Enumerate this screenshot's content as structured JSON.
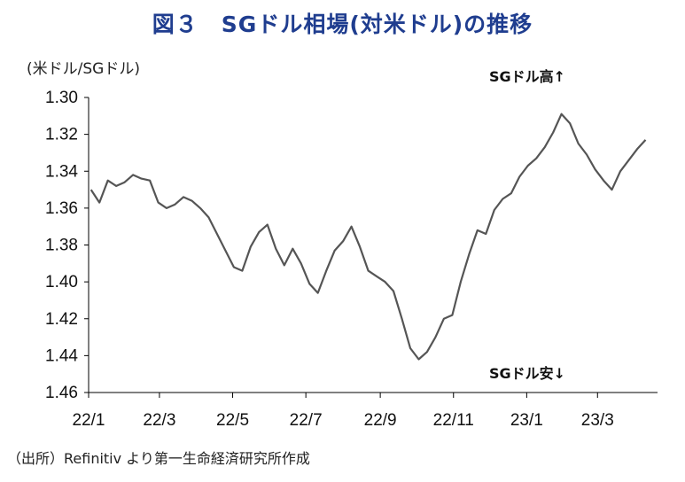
{
  "title": "図３　SGドル相場(対米ドル)の推移",
  "unit_label": "(米ドル/SGドル)",
  "source": "（出所）Refinitiv より第一生命経済研究所作成",
  "colors": {
    "title": "#1f3d8f",
    "line": "#555555",
    "axis": "#000000"
  },
  "chart_data": {
    "type": "line",
    "title": "図３　SGドル相場(対米ドル)の推移",
    "ylabel": "(米ドル/SGドル)",
    "xlabel": "",
    "y_inverted": true,
    "ylim": [
      1.3,
      1.46
    ],
    "yticks": [
      "1.30",
      "1.32",
      "1.34",
      "1.36",
      "1.38",
      "1.40",
      "1.42",
      "1.44",
      "1.46"
    ],
    "xticks": [
      "22/1",
      "22/3",
      "22/5",
      "22/7",
      "22/9",
      "22/11",
      "23/1",
      "23/3"
    ],
    "xrange_months": [
      "2022-01",
      "2023-04"
    ],
    "annotations": [
      "SGドル高↑",
      "SGドル安↓"
    ],
    "grid": false,
    "series": [
      {
        "x": [
          "2022-01-03",
          "2022-01-10",
          "2022-01-17",
          "2022-01-24",
          "2022-01-31",
          "2022-02-07",
          "2022-02-14",
          "2022-02-21",
          "2022-02-28",
          "2022-03-07",
          "2022-03-14",
          "2022-03-21",
          "2022-03-28",
          "2022-04-04",
          "2022-04-11",
          "2022-04-18",
          "2022-04-25",
          "2022-05-02",
          "2022-05-09",
          "2022-05-16",
          "2022-05-23",
          "2022-05-30",
          "2022-06-06",
          "2022-06-13",
          "2022-06-20",
          "2022-06-27",
          "2022-07-04",
          "2022-07-11",
          "2022-07-18",
          "2022-07-25",
          "2022-08-01",
          "2022-08-08",
          "2022-08-15",
          "2022-08-22",
          "2022-08-29",
          "2022-09-05",
          "2022-09-12",
          "2022-09-19",
          "2022-09-26",
          "2022-10-03",
          "2022-10-10",
          "2022-10-17",
          "2022-10-24",
          "2022-10-31",
          "2022-11-07",
          "2022-11-14",
          "2022-11-21",
          "2022-11-28",
          "2022-12-05",
          "2022-12-12",
          "2022-12-19",
          "2022-12-26",
          "2023-01-02",
          "2023-01-09",
          "2023-01-16",
          "2023-01-23",
          "2023-01-30",
          "2023-02-06",
          "2023-02-13",
          "2023-02-20",
          "2023-02-27",
          "2023-03-06",
          "2023-03-13",
          "2023-03-20",
          "2023-03-27",
          "2023-04-03",
          "2023-04-10"
        ],
        "values": [
          1.35,
          1.357,
          1.345,
          1.348,
          1.346,
          1.342,
          1.344,
          1.345,
          1.357,
          1.36,
          1.358,
          1.354,
          1.356,
          1.36,
          1.365,
          1.374,
          1.383,
          1.392,
          1.394,
          1.381,
          1.373,
          1.369,
          1.382,
          1.391,
          1.382,
          1.39,
          1.401,
          1.406,
          1.394,
          1.383,
          1.378,
          1.37,
          1.381,
          1.394,
          1.397,
          1.4,
          1.405,
          1.42,
          1.436,
          1.442,
          1.438,
          1.43,
          1.42,
          1.418,
          1.4,
          1.385,
          1.372,
          1.374,
          1.361,
          1.355,
          1.352,
          1.343,
          1.337,
          1.333,
          1.327,
          1.319,
          1.309,
          1.314,
          1.325,
          1.331,
          1.339,
          1.345,
          1.35,
          1.34,
          1.334,
          1.328,
          1.323
        ]
      }
    ]
  }
}
